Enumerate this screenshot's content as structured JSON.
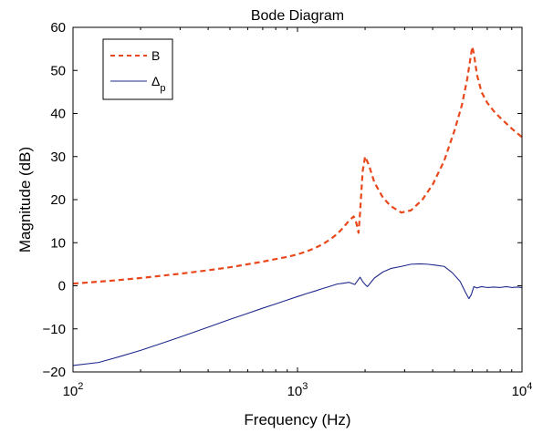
{
  "chart_data": {
    "type": "line",
    "title": "Bode Diagram",
    "xlabel": "Frequency (Hz)",
    "ylabel": "Magnitude (dB)",
    "xscale": "log",
    "xlim": [
      100,
      10000
    ],
    "ylim": [
      -20,
      60
    ],
    "x_ticks": [
      100,
      1000,
      10000
    ],
    "x_tick_labels": [
      {
        "base": "10",
        "exp": "2"
      },
      {
        "base": "10",
        "exp": "3"
      },
      {
        "base": "10",
        "exp": "4"
      }
    ],
    "y_ticks": [
      -20,
      -10,
      0,
      10,
      20,
      30,
      40,
      50,
      60
    ],
    "y_tick_labels": [
      "−20",
      "−10",
      "0",
      "10",
      "20",
      "30",
      "40",
      "50",
      "60"
    ],
    "grid": false,
    "legend_position": "top-left",
    "series": [
      {
        "name": "B",
        "legend_label": {
          "base": "B",
          "sub": ""
        },
        "color": "#e8481c",
        "style": "dashed",
        "x": [
          100,
          150,
          200,
          300,
          400,
          500,
          600,
          700,
          800,
          900,
          1000,
          1100,
          1200,
          1300,
          1400,
          1500,
          1600,
          1700,
          1780,
          1830,
          1870,
          1900,
          1950,
          2000,
          2080,
          2200,
          2400,
          2600,
          2900,
          3200,
          3600,
          4000,
          4500,
          5000,
          5400,
          5700,
          5900,
          6000,
          6100,
          6300,
          6600,
          7000,
          7500,
          8000,
          9000,
          10000
        ],
        "y": [
          0.5,
          1.2,
          1.8,
          2.8,
          3.6,
          4.3,
          5.0,
          5.6,
          6.2,
          6.7,
          7.3,
          8.0,
          8.8,
          9.7,
          10.8,
          12.0,
          13.5,
          15.2,
          16.1,
          14.5,
          12.3,
          17.0,
          26.5,
          30.0,
          28.0,
          24.0,
          20.5,
          18.5,
          17.0,
          17.5,
          20.0,
          23.5,
          29.0,
          36.0,
          42.0,
          48.0,
          53.0,
          55.5,
          54.0,
          49.0,
          45.0,
          42.5,
          40.5,
          39.0,
          36.5,
          34.5
        ]
      },
      {
        "name": "Δp",
        "legend_label": {
          "base": "Δ",
          "sub": "p"
        },
        "color": "#1f2a8c",
        "style": "solid",
        "x": [
          100,
          130,
          160,
          200,
          250,
          300,
          400,
          500,
          600,
          700,
          800,
          900,
          1000,
          1100,
          1200,
          1300,
          1400,
          1500,
          1600,
          1700,
          1800,
          1900,
          1950,
          2000,
          2050,
          2100,
          2200,
          2400,
          2600,
          2900,
          3200,
          3500,
          3800,
          4100,
          4500,
          4900,
          5300,
          5600,
          5800,
          5950,
          6100,
          6300,
          6600,
          7000,
          7500,
          8000,
          8500,
          9000,
          9500,
          10000
        ],
        "y": [
          -18.5,
          -17.8,
          -16.5,
          -15.0,
          -13.3,
          -11.9,
          -9.6,
          -7.8,
          -6.4,
          -5.2,
          -4.2,
          -3.3,
          -2.5,
          -1.8,
          -1.2,
          -0.6,
          -0.1,
          0.4,
          0.6,
          0.8,
          0.3,
          2.0,
          1.0,
          0.3,
          -0.2,
          0.5,
          1.8,
          3.2,
          4.0,
          4.5,
          5.0,
          5.1,
          5.0,
          4.8,
          4.5,
          3.0,
          1.0,
          -1.5,
          -3.0,
          -2.0,
          -0.2,
          -0.5,
          -0.2,
          -0.4,
          -0.3,
          -0.4,
          -0.2,
          -0.4,
          -0.3,
          -0.4
        ]
      }
    ]
  }
}
